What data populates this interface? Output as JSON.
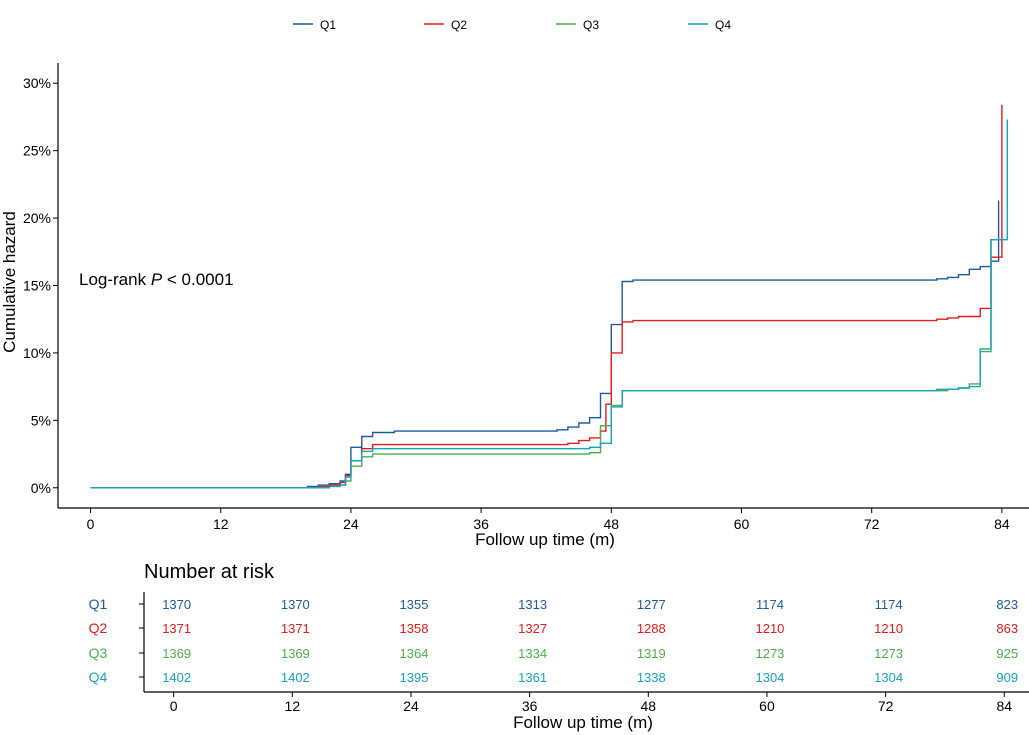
{
  "chart_data": [
    {
      "type": "line",
      "subtype": "step (cumulative hazard)",
      "xlabel": "Follow up time (m)",
      "ylabel": "Cumulative hazard",
      "xlim": [
        -3,
        86.5
      ],
      "ylim": [
        -1.5,
        31.5
      ],
      "x_ticks": [
        0,
        12,
        24,
        36,
        48,
        60,
        72,
        84
      ],
      "y_ticks": [
        0,
        5,
        10,
        15,
        20,
        25,
        30
      ],
      "y_tick_format": "percent",
      "grid": false,
      "legend": "top",
      "annotation": {
        "prefix": "Log-rank ",
        "italic": "P",
        "suffix": " < 0.0001"
      },
      "series": [
        {
          "name": "Q1",
          "color": "#1F5A9E",
          "points": [
            [
              0,
              0
            ],
            [
              19,
              0
            ],
            [
              20,
              0.1
            ],
            [
              21,
              0.2
            ],
            [
              22,
              0.3
            ],
            [
              23,
              0.5
            ],
            [
              23.5,
              1.0
            ],
            [
              24,
              3.0
            ],
            [
              25,
              3.8
            ],
            [
              26,
              4.1
            ],
            [
              28,
              4.2
            ],
            [
              43,
              4.3
            ],
            [
              44,
              4.5
            ],
            [
              45,
              4.8
            ],
            [
              46,
              5.2
            ],
            [
              47,
              7.0
            ],
            [
              48,
              12.1
            ],
            [
              49,
              15.3
            ],
            [
              50,
              15.4
            ],
            [
              78,
              15.5
            ],
            [
              79,
              15.6
            ],
            [
              80,
              15.8
            ],
            [
              81,
              16.2
            ],
            [
              82,
              16.4
            ],
            [
              83,
              16.8
            ],
            [
              83.7,
              21.3
            ]
          ]
        },
        {
          "name": "Q2",
          "color": "#E41A1C",
          "points": [
            [
              0,
              0
            ],
            [
              20,
              0
            ],
            [
              21,
              0.1
            ],
            [
              22,
              0.2
            ],
            [
              23,
              0.4
            ],
            [
              23.5,
              0.9
            ],
            [
              24,
              2.0
            ],
            [
              25,
              2.9
            ],
            [
              26,
              3.2
            ],
            [
              44,
              3.3
            ],
            [
              45,
              3.5
            ],
            [
              46,
              3.7
            ],
            [
              47,
              4.2
            ],
            [
              47.5,
              6.2
            ],
            [
              48,
              10.0
            ],
            [
              49,
              12.3
            ],
            [
              50,
              12.4
            ],
            [
              78,
              12.5
            ],
            [
              79,
              12.6
            ],
            [
              80,
              12.7
            ],
            [
              81,
              12.7
            ],
            [
              82,
              13.3
            ],
            [
              83,
              17.1
            ],
            [
              84,
              28.4
            ]
          ]
        },
        {
          "name": "Q3",
          "color": "#4DAF4A",
          "points": [
            [
              0,
              0
            ],
            [
              20,
              0
            ],
            [
              22,
              0.1
            ],
            [
              23,
              0.2
            ],
            [
              23.5,
              0.5
            ],
            [
              24,
              1.6
            ],
            [
              25,
              2.3
            ],
            [
              26,
              2.5
            ],
            [
              46,
              2.6
            ],
            [
              47,
              4.6
            ],
            [
              48,
              6.1
            ],
            [
              49,
              7.2
            ],
            [
              79,
              7.3
            ],
            [
              80,
              7.4
            ],
            [
              81,
              7.7
            ],
            [
              82,
              10.1
            ],
            [
              83,
              18.4
            ],
            [
              84,
              18.4
            ]
          ]
        },
        {
          "name": "Q4",
          "color": "#17A2BE",
          "points": [
            [
              0,
              0
            ],
            [
              20,
              0
            ],
            [
              22,
              0.1
            ],
            [
              23,
              0.2
            ],
            [
              23.5,
              0.8
            ],
            [
              24,
              2.0
            ],
            [
              25,
              2.7
            ],
            [
              26,
              2.9
            ],
            [
              46,
              3.0
            ],
            [
              47,
              3.3
            ],
            [
              48,
              6.0
            ],
            [
              49,
              7.2
            ],
            [
              78,
              7.3
            ],
            [
              80,
              7.4
            ],
            [
              81,
              7.5
            ],
            [
              82,
              10.3
            ],
            [
              83,
              18.4
            ],
            [
              84.5,
              18.4
            ],
            [
              84.5,
              27.3
            ]
          ]
        }
      ]
    },
    {
      "type": "table",
      "title": "Number at risk",
      "xlabel": "Follow up time (m)",
      "x_ticks": [
        0,
        12,
        24,
        36,
        48,
        60,
        72,
        84
      ],
      "rows": [
        {
          "name": "Q1",
          "color": "#1F5A9E",
          "values": [
            1370,
            1370,
            1355,
            1313,
            1277,
            1174,
            1174,
            823
          ]
        },
        {
          "name": "Q2",
          "color": "#E41A1C",
          "values": [
            1371,
            1371,
            1358,
            1327,
            1288,
            1210,
            1210,
            863
          ]
        },
        {
          "name": "Q3",
          "color": "#4DAF4A",
          "values": [
            1369,
            1369,
            1364,
            1334,
            1319,
            1273,
            1273,
            925
          ]
        },
        {
          "name": "Q4",
          "color": "#17A2BE",
          "values": [
            1402,
            1402,
            1395,
            1361,
            1338,
            1304,
            1304,
            909
          ]
        }
      ]
    }
  ]
}
